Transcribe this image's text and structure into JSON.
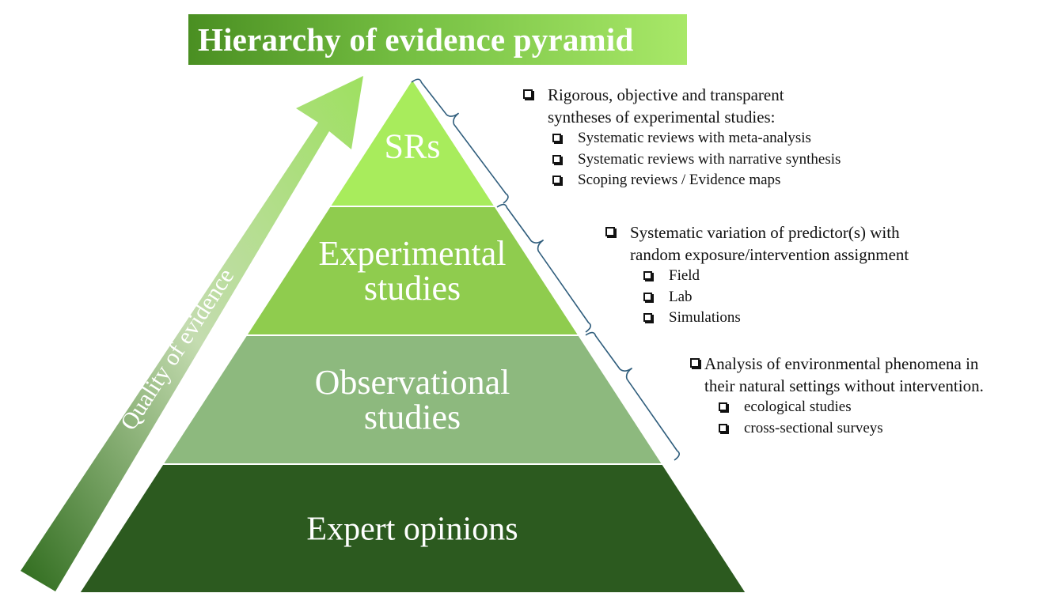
{
  "title": "Hierarchy of evidence pyramid",
  "arrow_label": "Quality of evidence",
  "colors": {
    "title_grad_left": "#4a8f22",
    "title_grad_right": "#a8e868",
    "tier_srs": "#a8ec5c",
    "tier_experimental": "#8fcc4e",
    "tier_observational": "#8db97e",
    "tier_expert": "#2c5a1f",
    "brace": "#2f5d7c"
  },
  "pyramid": {
    "tiers": [
      {
        "id": "srs",
        "lines": [
          "SRs"
        ]
      },
      {
        "id": "experimental",
        "lines": [
          "Experimental",
          "studies"
        ]
      },
      {
        "id": "observational",
        "lines": [
          "Observational",
          "studies"
        ]
      },
      {
        "id": "expert",
        "lines": [
          "Expert opinions"
        ]
      }
    ]
  },
  "annotations": {
    "srs": {
      "main": [
        "Rigorous, objective and transparent",
        "syntheses of experimental studies:"
      ],
      "subs": [
        "Systematic reviews with meta-analysis",
        "Systematic reviews with narrative synthesis",
        "Scoping reviews / Evidence maps"
      ]
    },
    "experimental": {
      "main": [
        "Systematic variation of predictor(s) with",
        "random exposure/intervention assignment"
      ],
      "subs": [
        "Field",
        "Lab",
        "Simulations"
      ]
    },
    "observational": {
      "main": [
        "Analysis of environmental phenomena in",
        "their natural settings without intervention."
      ],
      "subs": [
        "ecological studies",
        "cross-sectional surveys"
      ]
    }
  }
}
